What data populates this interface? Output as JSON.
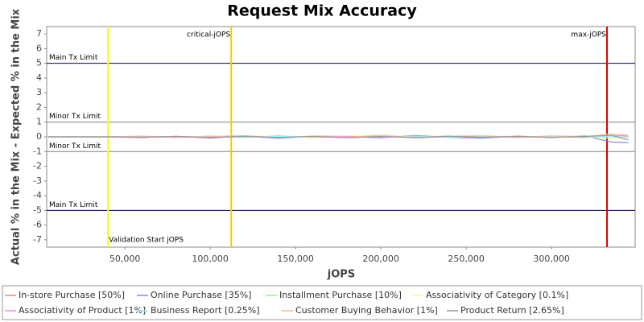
{
  "chart_data": {
    "type": "line",
    "title": "Request Mix Accuracy",
    "x_label": "jOPS",
    "y_label": "Actual % in the Mix - Expected % in the Mix",
    "x": [
      5000,
      40000,
      60000,
      80000,
      100000,
      120000,
      140000,
      160000,
      180000,
      200000,
      220000,
      240000,
      260000,
      280000,
      300000,
      320000,
      335000,
      345000
    ],
    "series": [
      {
        "name": "In-store Purchase [50%]",
        "color": "#ff8080",
        "values": [
          0,
          0,
          0.02,
          -0.03,
          0.05,
          -0.04,
          0.06,
          -0.05,
          0.03,
          0.04,
          -0.06,
          0.02,
          0.05,
          -0.03,
          0.04,
          -0.05,
          0.1,
          0.05
        ]
      },
      {
        "name": "Online Purchase [35%]",
        "color": "#8080ff",
        "values": [
          0,
          0,
          -0.05,
          0.04,
          -0.08,
          0.06,
          -0.1,
          0.05,
          0.02,
          -0.06,
          0.1,
          -0.04,
          -0.08,
          0.05,
          -0.05,
          0.06,
          -0.35,
          -0.4
        ]
      },
      {
        "name": "Installment Purchase [10%]",
        "color": "#80ff80",
        "values": [
          0,
          0,
          0.03,
          0.02,
          -0.04,
          0.05,
          -0.02,
          0.04,
          -0.05,
          0.03,
          -0.02,
          0.06,
          -0.04,
          0.02,
          0.03,
          -0.03,
          0.05,
          0.1
        ]
      },
      {
        "name": "Associativity of Category [0.1%]",
        "color": "#ffff80",
        "values": [
          0,
          0,
          0.04,
          -0.02,
          0.03,
          0.06,
          0.02,
          -0.04,
          0.05,
          0.12,
          -0.03,
          0.04,
          0.02,
          -0.05,
          0.03,
          0.02,
          -0.1,
          0.15
        ]
      },
      {
        "name": "Associativity of Product [1%]",
        "color": "#ff80ff",
        "values": [
          0,
          0,
          -0.02,
          0.03,
          -0.02,
          0.04,
          -0.03,
          0.02,
          0.04,
          -0.02,
          0.03,
          -0.04,
          0.02,
          0.03,
          -0.02,
          0.04,
          0.05,
          0.1
        ]
      },
      {
        "name": "Business Report [0.25%]",
        "color": "#80ffff",
        "values": [
          0,
          0,
          0.01,
          -0.02,
          0.02,
          -0.03,
          0.04,
          0.02,
          -0.03,
          0.02,
          0.05,
          -0.02,
          0.03,
          -0.04,
          0.02,
          0.01,
          0.03,
          -0.05
        ]
      },
      {
        "name": "Customer Buying Behavior [1%]",
        "color": "#ffb0a0",
        "values": [
          0,
          0,
          0.05,
          -0.04,
          0.02,
          0.08,
          -0.06,
          0.04,
          -0.02,
          0.1,
          -0.04,
          0.05,
          0.07,
          -0.03,
          0.06,
          0.02,
          0.2,
          0.1
        ]
      },
      {
        "name": "Product Return [2.65%]",
        "color": "#999999",
        "values": [
          0,
          0,
          -0.03,
          0.02,
          -0.05,
          0.03,
          -0.04,
          0.03,
          -0.06,
          0.02,
          -0.05,
          0.04,
          -0.03,
          0.02,
          -0.04,
          0.03,
          0.1,
          -0.2
        ]
      }
    ],
    "xlim": [
      4200,
      349000
    ],
    "ylim": [
      -7.5,
      7.5
    ],
    "xticks": [
      {
        "value": 50000,
        "label": "50,000"
      },
      {
        "value": 100000,
        "label": "100,000"
      },
      {
        "value": 150000,
        "label": "150,000"
      },
      {
        "value": 200000,
        "label": "200,000"
      },
      {
        "value": 250000,
        "label": "250,000"
      },
      {
        "value": 300000,
        "label": "300,000"
      }
    ],
    "yticks": [
      -7,
      -6,
      -5,
      -4,
      -3,
      -2,
      -1,
      0,
      1,
      2,
      3,
      4,
      5,
      6,
      7
    ],
    "y_markers": [
      {
        "label": "Main Tx Limit",
        "value": 5,
        "color": "#000060"
      },
      {
        "label": "Minor Tx Limit",
        "value": 1,
        "color": "#808080"
      },
      {
        "label": "Minor Tx Limit",
        "value": -1,
        "color": "#808080"
      },
      {
        "label": "Main Tx Limit",
        "value": -5,
        "color": "#000060"
      }
    ],
    "x_markers": [
      {
        "label": "Validation Start jOPS",
        "value": 40100,
        "color": "#ffff00"
      },
      {
        "label": "critical-jOPS",
        "value": 112300,
        "color": "#ffc800"
      },
      {
        "label": "max-jOPS",
        "value": 332500,
        "color": "#dd0000"
      }
    ],
    "legend": "bottom"
  }
}
